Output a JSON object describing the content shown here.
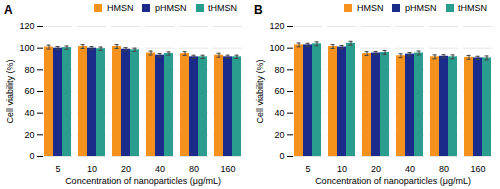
{
  "chart_data": [
    {
      "type": "bar",
      "title": "A",
      "categories": [
        "5",
        "10",
        "20",
        "40",
        "80",
        "160"
      ],
      "series": [
        {
          "name": "HMSN",
          "color": "#F5921E",
          "values": [
            101.0,
            101.5,
            101.5,
            95.5,
            95.0,
            93.5
          ],
          "errors": [
            1.8,
            1.8,
            1.8,
            1.8,
            1.8,
            1.8
          ]
        },
        {
          "name": "pHMSN",
          "color": "#1B2B8A",
          "values": [
            100.0,
            100.0,
            99.0,
            93.5,
            92.0,
            92.0
          ],
          "errors": [
            1.5,
            1.5,
            1.5,
            1.5,
            1.5,
            1.5
          ]
        },
        {
          "name": "tHMSN",
          "color": "#2A9D8F",
          "values": [
            100.5,
            99.5,
            98.5,
            95.0,
            92.0,
            92.0
          ],
          "errors": [
            1.5,
            1.5,
            1.5,
            1.5,
            1.5,
            1.5
          ]
        }
      ],
      "xlabel": "Concentration of nanoparticles (μg/mL)",
      "ylabel": "Cell viability (%)",
      "ylim": [
        0,
        120
      ],
      "yticks": [
        0,
        20,
        40,
        60,
        80,
        100,
        120
      ],
      "grid": true,
      "legend": "upper right"
    },
    {
      "type": "bar",
      "title": "B",
      "categories": [
        "5",
        "10",
        "20",
        "40",
        "80",
        "160"
      ],
      "series": [
        {
          "name": "HMSN",
          "color": "#F5921E",
          "values": [
            103.0,
            101.5,
            95.0,
            93.0,
            92.0,
            91.5
          ],
          "errors": [
            1.8,
            1.8,
            1.8,
            1.8,
            1.8,
            1.8
          ]
        },
        {
          "name": "pHMSN",
          "color": "#1B2B8A",
          "values": [
            103.0,
            101.0,
            95.5,
            94.5,
            92.5,
            91.0
          ],
          "errors": [
            1.5,
            1.5,
            1.5,
            1.5,
            1.5,
            1.5
          ]
        },
        {
          "name": "tHMSN",
          "color": "#2A9D8F",
          "values": [
            104.0,
            104.5,
            96.0,
            95.5,
            92.0,
            91.0
          ],
          "errors": [
            1.8,
            1.8,
            1.8,
            1.8,
            1.8,
            1.8
          ]
        }
      ],
      "xlabel": "Concentration of nanoparticles (μg/mL)",
      "ylabel": "Cell viability (%)",
      "ylim": [
        0,
        120
      ],
      "yticks": [
        0,
        20,
        40,
        60,
        80,
        100,
        120
      ],
      "grid": true,
      "legend": "upper right"
    }
  ]
}
